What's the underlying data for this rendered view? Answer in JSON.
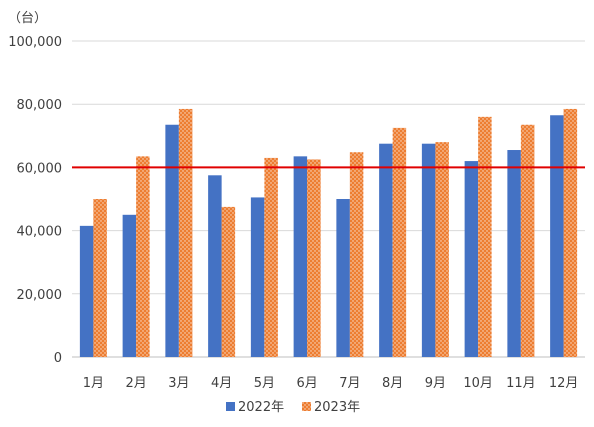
{
  "chart_data": {
    "type": "bar",
    "unit_label": "（台）",
    "categories": [
      "1月",
      "2月",
      "3月",
      "4月",
      "5月",
      "6月",
      "7月",
      "8月",
      "9月",
      "10月",
      "11月",
      "12月"
    ],
    "series": [
      {
        "name": "2022年",
        "color": "#4472C4",
        "pattern": "solid",
        "values": [
          41500,
          45000,
          73500,
          57500,
          50500,
          63500,
          50000,
          67500,
          67500,
          62000,
          65500,
          76500
        ]
      },
      {
        "name": "2023年",
        "color": "#ED7D31",
        "pattern": "dotted",
        "values": [
          50000,
          63500,
          78500,
          47500,
          63000,
          62500,
          64800,
          72500,
          68000,
          76000,
          73500,
          78500
        ]
      }
    ],
    "ylim": [
      0,
      100000
    ],
    "yticks": [
      0,
      20000,
      40000,
      60000,
      80000,
      100000
    ],
    "ytick_labels": [
      "0",
      "20,000",
      "40,000",
      "60,000",
      "80,000",
      "100,000"
    ],
    "reference_line": {
      "value": 60000,
      "color": "#E00000"
    },
    "grid": true,
    "legend_position": "bottom"
  }
}
